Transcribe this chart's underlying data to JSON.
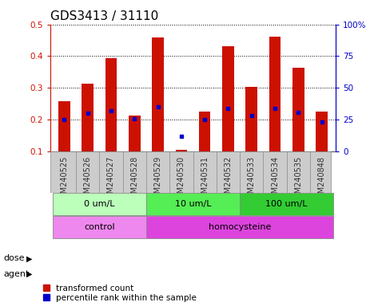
{
  "title": "GDS3413 / 31110",
  "samples": [
    "GSM240525",
    "GSM240526",
    "GSM240527",
    "GSM240528",
    "GSM240529",
    "GSM240530",
    "GSM240531",
    "GSM240532",
    "GSM240533",
    "GSM240534",
    "GSM240535",
    "GSM240848"
  ],
  "transformed_count": [
    0.257,
    0.313,
    0.393,
    0.213,
    0.46,
    0.103,
    0.225,
    0.432,
    0.303,
    0.462,
    0.363,
    0.225
  ],
  "percentile_rank_left": [
    0.2,
    0.22,
    0.228,
    0.202,
    0.24,
    0.148,
    0.2,
    0.235,
    0.212,
    0.235,
    0.222,
    0.192
  ],
  "bar_bottom": 0.1,
  "ylim": [
    0.1,
    0.5
  ],
  "yticks_left": [
    0.1,
    0.2,
    0.3,
    0.4,
    0.5
  ],
  "yticks_right": [
    0,
    25,
    50,
    75,
    100
  ],
  "right_labels": [
    "0",
    "25",
    "50",
    "75",
    "100%"
  ],
  "bar_color": "#cc1100",
  "dot_color": "#0000cc",
  "dose_groups": [
    {
      "label": "0 um/L",
      "start": 0,
      "end": 4,
      "color": "#bbffbb"
    },
    {
      "label": "10 um/L",
      "start": 4,
      "end": 8,
      "color": "#55ee55"
    },
    {
      "label": "100 um/L",
      "start": 8,
      "end": 12,
      "color": "#33cc33"
    }
  ],
  "agent_groups": [
    {
      "label": "control",
      "start": 0,
      "end": 4,
      "color": "#ee88ee"
    },
    {
      "label": "homocysteine",
      "start": 4,
      "end": 12,
      "color": "#dd44dd"
    }
  ],
  "dose_label": "dose",
  "agent_label": "agent",
  "legend_red": "transformed count",
  "legend_blue": "percentile rank within the sample",
  "bar_color_left": "#cc1100",
  "bar_color_right": "#0000cc",
  "title_fontsize": 11,
  "tick_fontsize": 7.5,
  "label_fontsize": 8,
  "xtick_bg": "#cccccc"
}
